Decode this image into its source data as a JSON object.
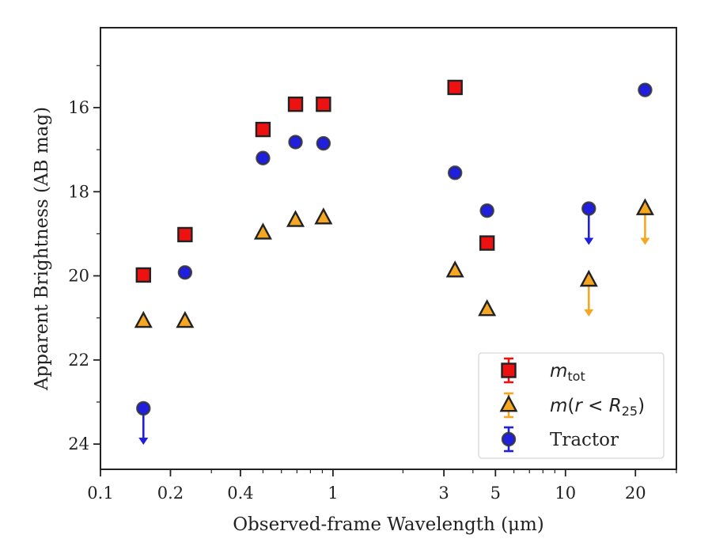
{
  "chart_data": {
    "type": "scatter",
    "title": "",
    "xlabel": "Observed-frame Wavelength (μm)",
    "ylabel": "Apparent Brightness (AB mag)",
    "xscale": "log",
    "yaxis_inverted": true,
    "xlim": [
      0.1,
      30
    ],
    "ylim": [
      24.6,
      14.1
    ],
    "x_ticks": [
      0.1,
      0.2,
      0.4,
      1,
      3,
      5,
      10,
      20
    ],
    "x_tick_labels": [
      "0.1",
      "0.2",
      "0.4",
      "1",
      "3",
      "5",
      "10",
      "20"
    ],
    "y_ticks": [
      16,
      18,
      20,
      22,
      24
    ],
    "y_tick_labels": [
      "16",
      "18",
      "20",
      "22",
      "24"
    ],
    "grid": false,
    "legend_position": "lower-right",
    "series": [
      {
        "name": "m_tot",
        "marker": "square",
        "color": "#ee1111",
        "points": [
          {
            "x": 0.153,
            "y": 19.98
          },
          {
            "x": 0.231,
            "y": 19.02
          },
          {
            "x": 0.5,
            "y": 16.52
          },
          {
            "x": 0.69,
            "y": 15.92
          },
          {
            "x": 0.91,
            "y": 15.92
          },
          {
            "x": 3.35,
            "y": 15.52
          },
          {
            "x": 4.6,
            "y": 19.22
          }
        ]
      },
      {
        "name": "m(r < R25)",
        "marker": "triangle",
        "color": "#f5a623",
        "points": [
          {
            "x": 0.153,
            "y": 21.08
          },
          {
            "x": 0.231,
            "y": 21.08
          },
          {
            "x": 0.5,
            "y": 18.98
          },
          {
            "x": 0.69,
            "y": 18.68
          },
          {
            "x": 0.91,
            "y": 18.62
          },
          {
            "x": 3.35,
            "y": 19.88
          },
          {
            "x": 4.6,
            "y": 20.8
          },
          {
            "x": 12.6,
            "y": 20.1,
            "upper_limit": true
          },
          {
            "x": 22.0,
            "y": 18.4,
            "upper_limit": true
          }
        ]
      },
      {
        "name": "Tractor",
        "marker": "circle",
        "color": "#1f1fdd",
        "points": [
          {
            "x": 0.153,
            "y": 23.15,
            "upper_limit": true
          },
          {
            "x": 0.231,
            "y": 19.92
          },
          {
            "x": 0.5,
            "y": 17.2
          },
          {
            "x": 0.69,
            "y": 16.82
          },
          {
            "x": 0.91,
            "y": 16.85
          },
          {
            "x": 3.35,
            "y": 17.55
          },
          {
            "x": 4.6,
            "y": 18.45
          },
          {
            "x": 12.6,
            "y": 18.4,
            "upper_limit": true
          },
          {
            "x": 22.0,
            "y": 15.58
          }
        ]
      }
    ]
  }
}
